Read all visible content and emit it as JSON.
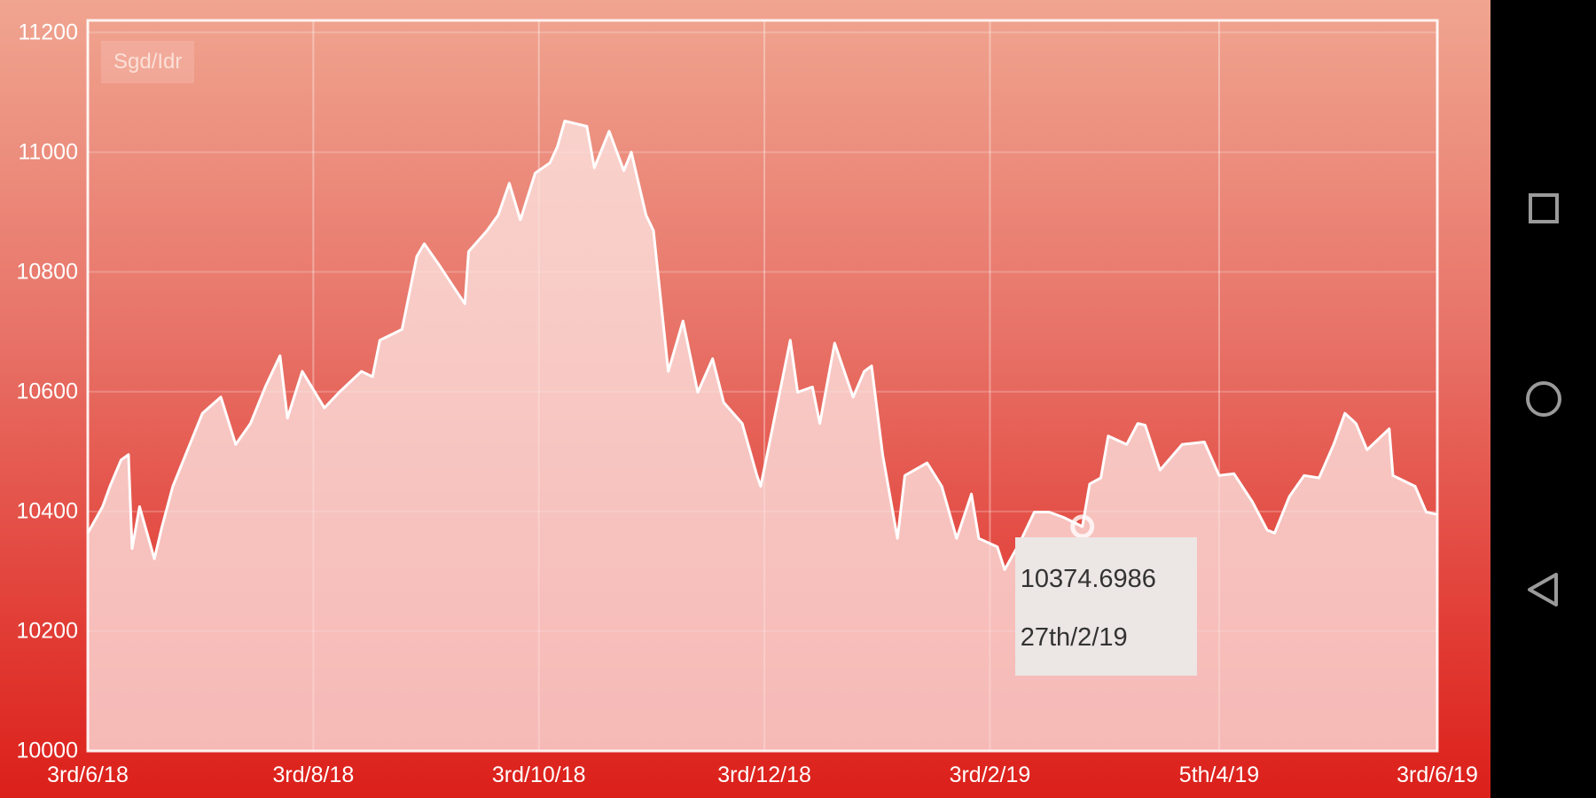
{
  "chart_data": {
    "type": "area",
    "title": "",
    "xlabel": "",
    "ylabel": "",
    "legend": {
      "entries": [
        "Sgd/Idr"
      ],
      "placement": "top-left"
    },
    "grid": true,
    "ylim": [
      10000,
      11220
    ],
    "xlim": [
      "2018-06-03",
      "2019-06-03"
    ],
    "y_ticks": [
      "10000",
      "10200",
      "10400",
      "10600",
      "10800",
      "11000",
      "11200"
    ],
    "x_ticks": [
      {
        "label": "3rd/6/18",
        "date": "2018-06-03"
      },
      {
        "label": "3rd/8/18",
        "date": "2018-08-03"
      },
      {
        "label": "3rd/10/18",
        "date": "2018-10-03"
      },
      {
        "label": "3rd/12/18",
        "date": "2018-12-03"
      },
      {
        "label": "3rd/2/19",
        "date": "2019-02-02"
      },
      {
        "label": "5th/4/19",
        "date": "2019-04-05"
      },
      {
        "label": "3rd/6/19",
        "date": "2019-06-03"
      }
    ],
    "colors": {
      "line": "#ffffff",
      "fill": "#fde3e0",
      "background_top": "#f0a590",
      "background_bottom": "#dc1f1a"
    },
    "series": [
      {
        "name": "Sgd/Idr",
        "points": [
          [
            "2018-06-03",
            10364
          ],
          [
            "2018-06-07",
            10408
          ],
          [
            "2018-06-09",
            10442
          ],
          [
            "2018-06-12",
            10486
          ],
          [
            "2018-06-14",
            10495
          ],
          [
            "2018-06-15",
            10338
          ],
          [
            "2018-06-17",
            10408
          ],
          [
            "2018-06-21",
            10321
          ],
          [
            "2018-06-23",
            10373
          ],
          [
            "2018-06-26",
            10442
          ],
          [
            "2018-06-30",
            10503
          ],
          [
            "2018-07-04",
            10564
          ],
          [
            "2018-07-09",
            10591
          ],
          [
            "2018-07-13",
            10512
          ],
          [
            "2018-07-17",
            10547
          ],
          [
            "2018-07-21",
            10608
          ],
          [
            "2018-07-25",
            10660
          ],
          [
            "2018-07-27",
            10556
          ],
          [
            "2018-07-31",
            10634
          ],
          [
            "2018-08-06",
            10573
          ],
          [
            "2018-08-10",
            10599
          ],
          [
            "2018-08-16",
            10634
          ],
          [
            "2018-08-19",
            10625
          ],
          [
            "2018-08-21",
            10686
          ],
          [
            "2018-08-27",
            10704
          ],
          [
            "2018-08-31",
            10826
          ],
          [
            "2018-09-02",
            10847
          ],
          [
            "2018-09-06",
            10812
          ],
          [
            "2018-09-11",
            10765
          ],
          [
            "2018-09-13",
            10747
          ],
          [
            "2018-09-14",
            10834
          ],
          [
            "2018-09-19",
            10869
          ],
          [
            "2018-09-22",
            10895
          ],
          [
            "2018-09-25",
            10948
          ],
          [
            "2018-09-28",
            10887
          ],
          [
            "2018-10-02",
            10965
          ],
          [
            "2018-10-06",
            10982
          ],
          [
            "2018-10-08",
            11009
          ],
          [
            "2018-10-10",
            11052
          ],
          [
            "2018-10-16",
            11043
          ],
          [
            "2018-10-18",
            10974
          ],
          [
            "2018-10-22",
            11035
          ],
          [
            "2018-10-26",
            10969
          ],
          [
            "2018-10-28",
            11000
          ],
          [
            "2018-11-01",
            10895
          ],
          [
            "2018-11-03",
            10869
          ],
          [
            "2018-11-07",
            10634
          ],
          [
            "2018-11-11",
            10718
          ],
          [
            "2018-11-15",
            10599
          ],
          [
            "2018-11-19",
            10655
          ],
          [
            "2018-11-22",
            10582
          ],
          [
            "2018-11-27",
            10547
          ],
          [
            "2018-12-01",
            10460
          ],
          [
            "2018-12-02",
            10442
          ],
          [
            "2018-12-06",
            10564
          ],
          [
            "2018-12-10",
            10686
          ],
          [
            "2018-12-12",
            10599
          ],
          [
            "2018-12-16",
            10608
          ],
          [
            "2018-12-18",
            10547
          ],
          [
            "2018-12-22",
            10681
          ],
          [
            "2018-12-27",
            10591
          ],
          [
            "2018-12-30",
            10634
          ],
          [
            "2019-01-01",
            10643
          ],
          [
            "2019-01-04",
            10495
          ],
          [
            "2019-01-08",
            10355
          ],
          [
            "2019-01-10",
            10460
          ],
          [
            "2019-01-16",
            10481
          ],
          [
            "2019-01-20",
            10442
          ],
          [
            "2019-01-24",
            10355
          ],
          [
            "2019-01-28",
            10429
          ],
          [
            "2019-01-30",
            10355
          ],
          [
            "2019-02-04",
            10341
          ],
          [
            "2019-02-06",
            10303
          ],
          [
            "2019-02-10",
            10347
          ],
          [
            "2019-02-14",
            10399
          ],
          [
            "2019-02-18",
            10399
          ],
          [
            "2019-02-22",
            10390
          ],
          [
            "2019-02-27",
            10374.6986
          ],
          [
            "2019-03-01",
            10446
          ],
          [
            "2019-03-04",
            10456
          ],
          [
            "2019-03-06",
            10526
          ],
          [
            "2019-03-11",
            10512
          ],
          [
            "2019-03-14",
            10547
          ],
          [
            "2019-03-16",
            10544
          ],
          [
            "2019-03-20",
            10469
          ],
          [
            "2019-03-26",
            10512
          ],
          [
            "2019-04-01",
            10516
          ],
          [
            "2019-04-05",
            10460
          ],
          [
            "2019-04-09",
            10463
          ],
          [
            "2019-04-14",
            10416
          ],
          [
            "2019-04-18",
            10369
          ],
          [
            "2019-04-20",
            10364
          ],
          [
            "2019-04-24",
            10425
          ],
          [
            "2019-04-28",
            10460
          ],
          [
            "2019-05-02",
            10456
          ],
          [
            "2019-05-06",
            10512
          ],
          [
            "2019-05-09",
            10564
          ],
          [
            "2019-05-12",
            10547
          ],
          [
            "2019-05-15",
            10503
          ],
          [
            "2019-05-21",
            10538
          ],
          [
            "2019-05-22",
            10460
          ],
          [
            "2019-05-28",
            10442
          ],
          [
            "2019-05-31",
            10399
          ],
          [
            "2019-06-03",
            10395
          ]
        ]
      }
    ],
    "tooltip": {
      "value": "10374.6986",
      "date_label": "27th/2/19",
      "date": "2019-02-27",
      "y": 10374.6986
    }
  },
  "navbar": {
    "buttons": [
      {
        "name": "recents",
        "icon": "square-icon"
      },
      {
        "name": "home",
        "icon": "circle-icon"
      },
      {
        "name": "back",
        "icon": "triangle-icon"
      }
    ]
  }
}
